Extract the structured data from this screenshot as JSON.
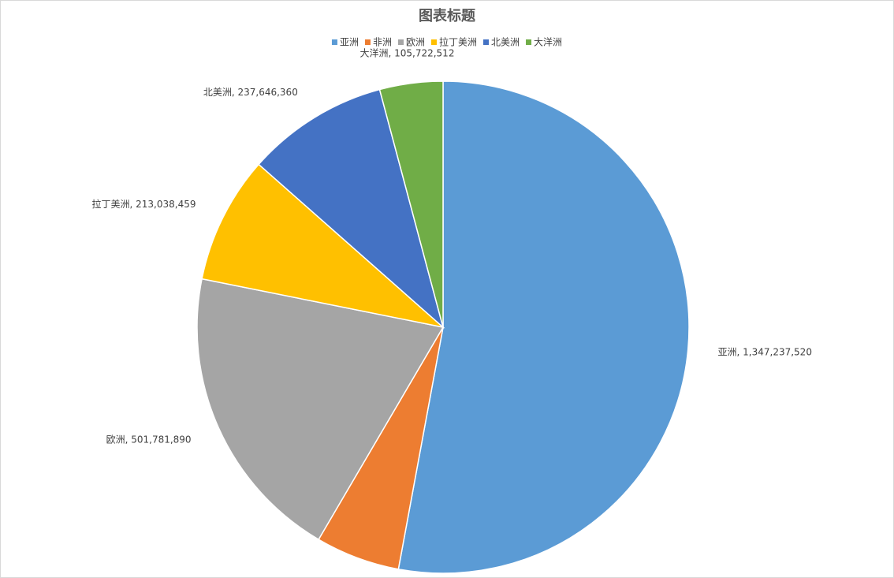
{
  "chart_data": {
    "type": "pie",
    "title": "图表标题",
    "categories": [
      "亚洲",
      "非洲",
      "欧洲",
      "拉丁美洲",
      "北美洲",
      "大洋洲"
    ],
    "values": [
      1347237520,
      141000000,
      501781890,
      213038459,
      237646360,
      105722512
    ],
    "value_labels": [
      "亚洲, 1,347,237,520",
      null,
      "欧洲, 501,781,890",
      "拉丁美洲, 213,038,459",
      "北美洲, 237,646,360",
      "大洋洲, 105,722,512"
    ],
    "colors": [
      "#5b9bd5",
      "#ed7d31",
      "#a5a5a5",
      "#ffc000",
      "#4472c4",
      "#70ad47"
    ],
    "legend": "top"
  }
}
